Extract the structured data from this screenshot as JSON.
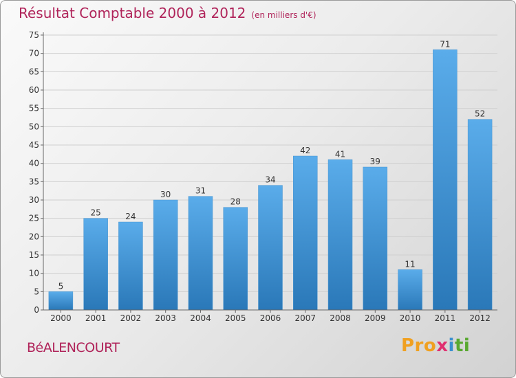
{
  "header": {
    "title": "Résultat Comptable 2000 à 2012",
    "subtitle": "(en milliers d'€)"
  },
  "footer": {
    "town": "BéALENCOURT",
    "logo": "Proxiti"
  },
  "colors": {
    "bar_top": "#5aacea",
    "bar_bottom": "#2a78b8",
    "title": "#b0245a",
    "grid": "#cfcfcf"
  },
  "chart_data": {
    "type": "bar",
    "categories": [
      "2000",
      "2001",
      "2002",
      "2003",
      "2004",
      "2005",
      "2006",
      "2007",
      "2008",
      "2009",
      "2010",
      "2011",
      "2012"
    ],
    "values": [
      5,
      25,
      24,
      30,
      31,
      28,
      34,
      42,
      41,
      39,
      11,
      71,
      52
    ],
    "title": "Résultat Comptable 2000 à 2012",
    "subtitle": "(en milliers d'€)",
    "xlabel": "",
    "ylabel": "",
    "ylim": [
      0,
      75
    ],
    "yticks": [
      0,
      5,
      10,
      15,
      20,
      25,
      30,
      35,
      40,
      45,
      50,
      55,
      60,
      65,
      70,
      75
    ],
    "grid": true,
    "data_labels": true
  }
}
